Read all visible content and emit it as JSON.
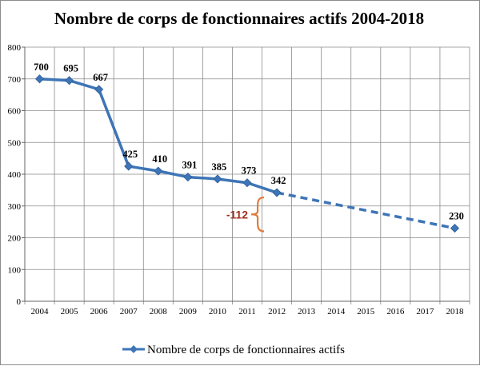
{
  "chart_data": {
    "type": "line",
    "title": "Nombre de corps de fonctionnaires actifs 2004-2018",
    "xlabel": "",
    "ylabel": "",
    "categories": [
      "2004",
      "2005",
      "2006",
      "2007",
      "2008",
      "2009",
      "2010",
      "2011",
      "2012",
      "2013",
      "2014",
      "2015",
      "2016",
      "2017",
      "2018"
    ],
    "ylim": [
      0,
      800
    ],
    "yticks": [
      0,
      100,
      200,
      300,
      400,
      500,
      600,
      700,
      800
    ],
    "grid": true,
    "legend_placement": "bottom",
    "series": [
      {
        "name": "Nombre de corps de fonctionnaires actifs",
        "color": "#3e75b6",
        "values": [
          700,
          695,
          667,
          425,
          410,
          391,
          385,
          373,
          342,
          null,
          null,
          null,
          null,
          null,
          230
        ],
        "data_labels": [
          "700",
          "695",
          "667",
          "425",
          "410",
          "391",
          "385",
          "373",
          "342",
          "",
          "",
          "",
          "",
          "",
          "230"
        ],
        "projection": {
          "from": "2012",
          "to": "2018",
          "style": "dashed"
        }
      }
    ],
    "annotations": [
      {
        "text": "-112",
        "color": "#a0301e",
        "brace_color": "#e07b39"
      }
    ]
  }
}
